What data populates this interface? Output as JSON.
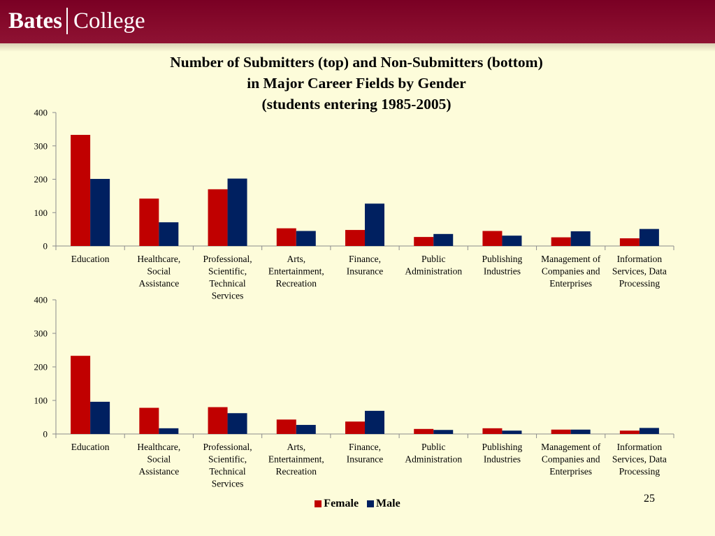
{
  "header": {
    "logo_left": "Bates",
    "logo_right": "College"
  },
  "title_lines": [
    "Number of Submitters (top) and Non-Submitters (bottom)",
    "in Major Career Fields by Gender",
    "(students entering 1985-2005)"
  ],
  "colors": {
    "female": "#c00000",
    "male": "#002060"
  },
  "chart_data": [
    {
      "type": "bar",
      "categories": [
        [
          "Education"
        ],
        [
          "Healthcare,",
          "Social",
          "Assistance"
        ],
        [
          "Professional,",
          "Scientific,",
          "Technical",
          "Services"
        ],
        [
          "Arts,",
          "Entertainment,",
          "Recreation"
        ],
        [
          "Finance,",
          "Insurance"
        ],
        [
          "Public",
          "Administration"
        ],
        [
          "Publishing",
          "Industries"
        ],
        [
          "Management of",
          "Companies and",
          "Enterprises"
        ],
        [
          "Information",
          "Services, Data",
          "Processing"
        ]
      ],
      "series": [
        {
          "name": "Female",
          "values": [
            333,
            142,
            170,
            53,
            48,
            27,
            45,
            26,
            23
          ]
        },
        {
          "name": "Male",
          "values": [
            201,
            71,
            202,
            45,
            127,
            36,
            31,
            44,
            51
          ]
        }
      ],
      "ylim": [
        0,
        400
      ],
      "yticks": [
        0,
        100,
        200,
        300,
        400
      ]
    },
    {
      "type": "bar",
      "categories": [
        [
          "Education"
        ],
        [
          "Healthcare,",
          "Social",
          "Assistance"
        ],
        [
          "Professional,",
          "Scientific,",
          "Technical",
          "Services"
        ],
        [
          "Arts,",
          "Entertainment,",
          "Recreation"
        ],
        [
          "Finance,",
          "Insurance"
        ],
        [
          "Public",
          "Administration"
        ],
        [
          "Publishing",
          "Industries"
        ],
        [
          "Management of",
          "Companies and",
          "Enterprises"
        ],
        [
          "Information",
          "Services, Data",
          "Processing"
        ]
      ],
      "series": [
        {
          "name": "Female",
          "values": [
            233,
            78,
            80,
            43,
            37,
            15,
            17,
            13,
            10
          ]
        },
        {
          "name": "Male",
          "values": [
            96,
            17,
            62,
            27,
            69,
            12,
            10,
            13,
            18
          ]
        }
      ],
      "ylim": [
        0,
        400
      ],
      "yticks": [
        0,
        100,
        200,
        300,
        400
      ]
    }
  ],
  "legend": {
    "female": "Female",
    "male": "Male"
  },
  "page_number": "25"
}
